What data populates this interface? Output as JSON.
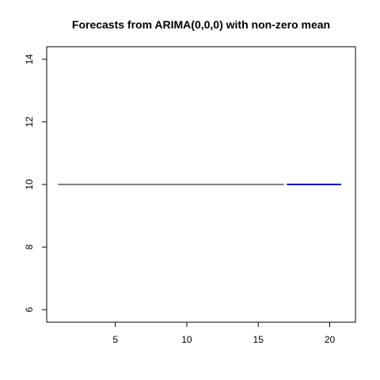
{
  "chart_data": {
    "type": "line",
    "title": "Forecasts from ARIMA(0,0,0) with non-zero mean",
    "xlabel": "",
    "ylabel": "",
    "xlim": [
      0.2,
      21.8
    ],
    "ylim": [
      5.6,
      14.4
    ],
    "x_ticks": [
      5,
      10,
      15,
      20
    ],
    "y_ticks": [
      6,
      8,
      10,
      12,
      14
    ],
    "grid": false,
    "series": [
      {
        "role": "observed",
        "color": "#000000",
        "x": [
          1,
          16.8
        ],
        "y": [
          10,
          10
        ]
      },
      {
        "role": "forecast",
        "color": "#0000cc",
        "x": [
          17,
          20.8
        ],
        "y": [
          10,
          10
        ]
      }
    ]
  }
}
